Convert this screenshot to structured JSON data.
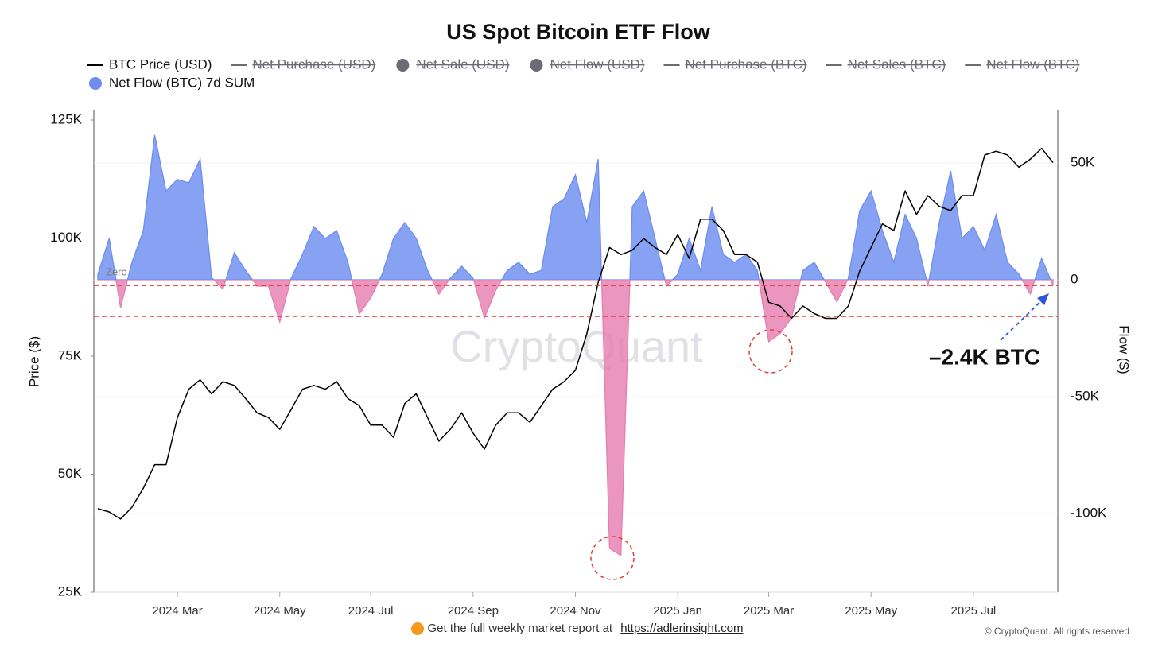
{
  "chart_data": {
    "type": "line",
    "title": "US Spot Bitcoin ETF Flow",
    "y_label": "Price ($)",
    "y2_label": "Flow ($)",
    "zero_label": "Zero",
    "annotation": "–2.4K BTC",
    "watermark": "CryptoQuant",
    "footer": {
      "text": "Get the full weekly market report at",
      "link": "https://adlerinsight.com"
    },
    "copyright": "© CryptoQuant. All rights reserved",
    "categories": [
      null,
      null,
      null,
      null,
      null,
      null,
      null,
      "2024 Mar",
      null,
      null,
      null,
      null,
      null,
      null,
      null,
      null,
      "2024 May",
      null,
      null,
      null,
      null,
      null,
      null,
      null,
      "2024 Jul",
      null,
      null,
      null,
      null,
      null,
      null,
      null,
      null,
      "2024 Sep",
      null,
      null,
      null,
      null,
      null,
      null,
      null,
      null,
      "2024 Nov",
      null,
      null,
      null,
      null,
      null,
      null,
      null,
      null,
      "2025 Jan",
      null,
      null,
      null,
      null,
      null,
      null,
      null,
      "2025 Mar",
      null,
      null,
      null,
      null,
      null,
      null,
      null,
      null,
      "2025 May",
      null,
      null,
      null,
      null,
      null,
      null,
      null,
      null,
      "2025 Jul",
      null,
      null,
      null,
      null,
      null,
      null,
      null
    ],
    "series": [
      {
        "name": "BTC Price (USD)",
        "color": "#000000",
        "marker": "line",
        "values": [
          42700,
          42000,
          40500,
          43000,
          47000,
          52000,
          52000,
          62000,
          68000,
          70000,
          67000,
          69600,
          68800,
          66000,
          63000,
          62000,
          59500,
          63700,
          68000,
          68800,
          68000,
          69600,
          66000,
          64500,
          60400,
          60400,
          57800,
          65000,
          67000,
          62000,
          57000,
          59500,
          63000,
          58700,
          55300,
          60400,
          63000,
          63000,
          61000,
          64500,
          68000,
          69600,
          72000,
          79700,
          90600,
          98000,
          96500,
          97400,
          99900,
          98000,
          96500,
          100700,
          95700,
          104000,
          104000,
          101600,
          96500,
          96500,
          94900,
          86400,
          85600,
          83000,
          85600,
          84000,
          83000,
          83000,
          85600,
          93000,
          98000,
          103000,
          101600,
          110000,
          105000,
          109000,
          106700,
          105800,
          109000,
          109000,
          117600,
          118400,
          117600,
          115000,
          116700,
          119000,
          116000
        ]
      },
      {
        "name": "Net Purchase (USD)",
        "color": "#6b6b75",
        "marker": "line",
        "visible": false
      },
      {
        "name": "Net Sale (USD)",
        "color": "#6b6b75",
        "marker": "circle",
        "visible": false
      },
      {
        "name": "Net Flow (USD)",
        "color": "#6b6b75",
        "marker": "circle",
        "visible": false
      },
      {
        "name": "Net Purchase (BTC)",
        "color": "#6b6b75",
        "marker": "line",
        "visible": false
      },
      {
        "name": "Net Sales (BTC)",
        "color": "#6b6b75",
        "marker": "line",
        "visible": false
      },
      {
        "name": "Net Flow (BTC)",
        "color": "#6b6b75",
        "marker": "line",
        "visible": false
      },
      {
        "name": "Net Flow (BTC) 7d SUM",
        "type": "area",
        "axis": "y2",
        "color": "#6d8ef0",
        "negative_color": "#e57fb0",
        "marker": "circle",
        "values": [
          2400,
          17700,
          -12000,
          7500,
          21000,
          62000,
          38000,
          43000,
          41500,
          51700,
          1000,
          -4000,
          11600,
          4000,
          -2700,
          -2700,
          -18000,
          700,
          10900,
          22800,
          17700,
          21000,
          7500,
          -14600,
          -7800,
          2400,
          17700,
          24500,
          17700,
          4000,
          -6100,
          700,
          5800,
          700,
          -16300,
          -4400,
          4000,
          7500,
          2400,
          4000,
          31300,
          34700,
          44900,
          24500,
          51700,
          -115000,
          -118000,
          31300,
          38000,
          17700,
          -2700,
          2400,
          17700,
          4000,
          31300,
          10900,
          7500,
          10900,
          4000,
          -26500,
          -23000,
          -16300,
          4000,
          7500,
          -1000,
          -9500,
          700,
          29600,
          38000,
          21000,
          7500,
          27900,
          17700,
          -2700,
          24500,
          46600,
          17700,
          22800,
          12600,
          27900,
          7500,
          2400,
          -6100,
          9200,
          -2400
        ]
      }
    ],
    "ylim": [
      25000,
      125000
    ],
    "yticks": [
      {
        "value": 25000,
        "label": "25K"
      },
      {
        "value": 50000,
        "label": "50K"
      },
      {
        "value": 75000,
        "label": "75K"
      },
      {
        "value": 100000,
        "label": "100K"
      },
      {
        "value": 125000,
        "label": "125K"
      }
    ],
    "y2lim": [
      -133700,
      68400
    ],
    "y2ticks": [
      {
        "value": -100000,
        "label": "-100K"
      },
      {
        "value": -50000,
        "label": "-50K"
      },
      0,
      {
        "value": 50000,
        "label": "50K"
      }
    ],
    "grid": true,
    "reference_lines": [
      -2400,
      -15600
    ],
    "reference_color": "#e53935"
  }
}
